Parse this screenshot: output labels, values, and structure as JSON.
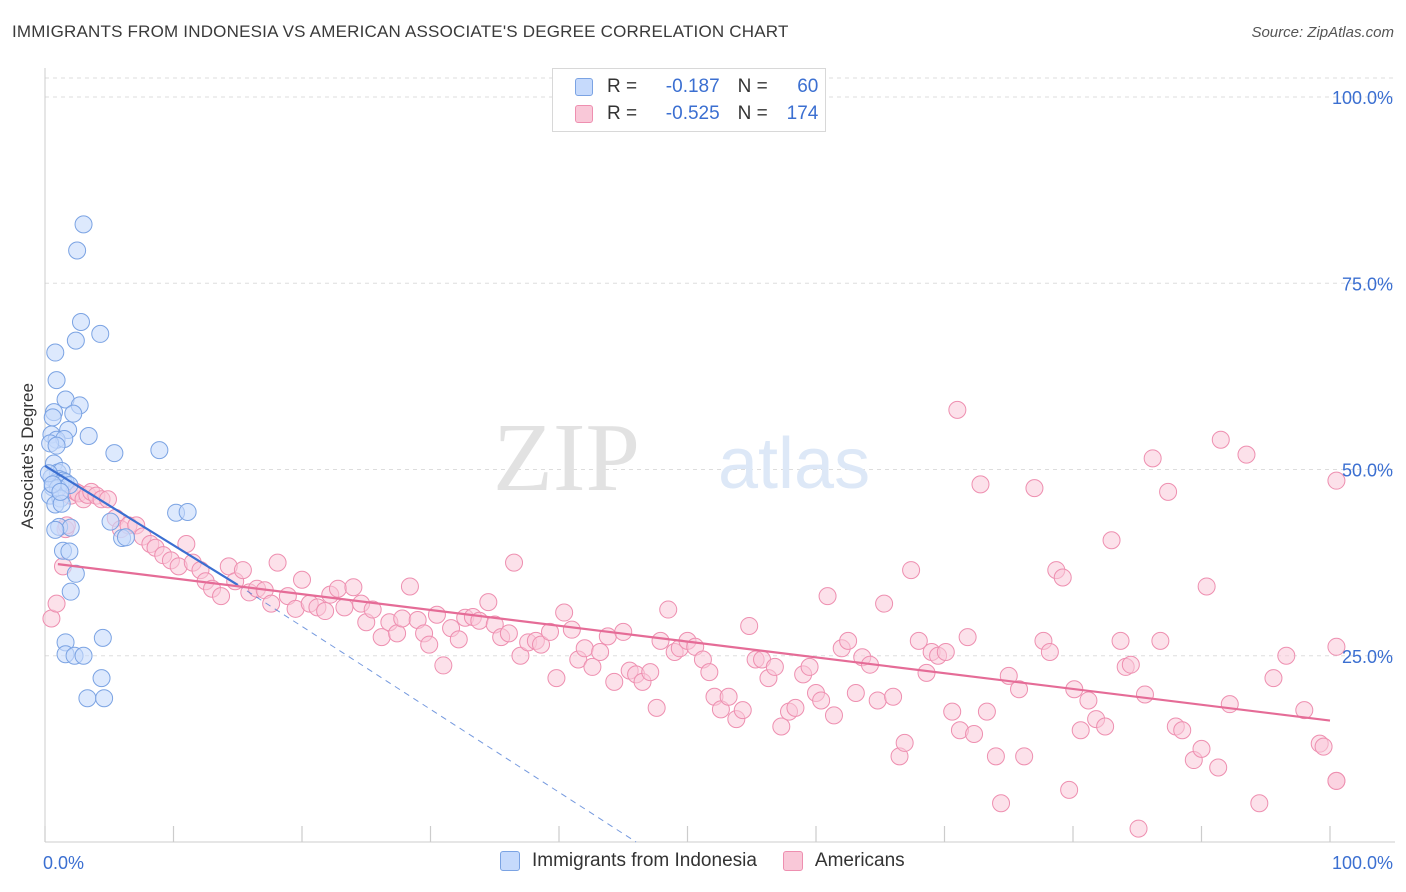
{
  "title": "IMMIGRANTS FROM INDONESIA VS AMERICAN ASSOCIATE'S DEGREE CORRELATION CHART",
  "source": "Source: ZipAtlas.com",
  "watermark": {
    "zip": "ZIP",
    "atlas": "atlas"
  },
  "legend_stats": [
    {
      "r_label": "R =",
      "r_value": "-0.187",
      "n_label": "N =",
      "n_value": "60"
    },
    {
      "r_label": "R =",
      "r_value": "-0.525",
      "n_label": "N =",
      "n_value": "174"
    }
  ],
  "colors": {
    "blue_fill": "#c6dafc",
    "blue_stroke": "#7ba3e3",
    "blue_line": "#3b6fd1",
    "pink_fill": "#f9c8d8",
    "pink_stroke": "#ee8fb0",
    "pink_line": "#e56c97",
    "axis_text": "#3b6fd1",
    "grid": "#dddddd"
  },
  "chart_data": {
    "type": "scatter",
    "title": "IMMIGRANTS FROM INDONESIA VS AMERICAN ASSOCIATE'S DEGREE CORRELATION CHART",
    "xlabel": "",
    "ylabel": "Associate's Degree",
    "xlim": [
      0,
      100
    ],
    "ylim": [
      0,
      100
    ],
    "x_tick_labels": [
      "0.0%",
      "100.0%"
    ],
    "y_ticks": [
      25,
      50,
      75,
      100
    ],
    "y_tick_labels": [
      "25.0%",
      "50.0%",
      "75.0%",
      "100.0%"
    ],
    "grid": true,
    "legend_position": "bottom",
    "series": [
      {
        "name": "Immigrants from Indonesia",
        "color": "#7ba3e3",
        "trend": {
          "x": [
            0,
            15
          ],
          "y": [
            50.5,
            34.5
          ],
          "extended_to": [
            46,
            0
          ]
        },
        "points": [
          [
            3.0,
            82.9
          ],
          [
            2.5,
            79.4
          ],
          [
            2.8,
            69.8
          ],
          [
            4.3,
            68.2
          ],
          [
            2.4,
            67.3
          ],
          [
            0.8,
            65.7
          ],
          [
            0.9,
            62.0
          ],
          [
            1.6,
            59.4
          ],
          [
            2.7,
            58.6
          ],
          [
            0.7,
            57.7
          ],
          [
            0.6,
            57.0
          ],
          [
            2.2,
            57.5
          ],
          [
            3.4,
            54.5
          ],
          [
            1.8,
            55.3
          ],
          [
            0.5,
            54.7
          ],
          [
            0.9,
            54.0
          ],
          [
            1.5,
            54.1
          ],
          [
            0.4,
            53.5
          ],
          [
            0.9,
            53.2
          ],
          [
            5.4,
            52.2
          ],
          [
            8.9,
            52.6
          ],
          [
            0.7,
            50.8
          ],
          [
            1.0,
            49.6
          ],
          [
            1.3,
            49.8
          ],
          [
            0.5,
            48.9
          ],
          [
            1.1,
            48.7
          ],
          [
            1.4,
            48.5
          ],
          [
            0.9,
            48.2
          ],
          [
            1.2,
            48.1
          ],
          [
            1.6,
            48.3
          ],
          [
            0.6,
            47.6
          ],
          [
            1.0,
            47.5
          ],
          [
            1.9,
            47.9
          ],
          [
            0.4,
            46.5
          ],
          [
            1.2,
            46.1
          ],
          [
            0.8,
            45.3
          ],
          [
            1.3,
            45.4
          ],
          [
            10.2,
            44.2
          ],
          [
            11.1,
            44.3
          ],
          [
            5.1,
            43.0
          ],
          [
            1.1,
            42.3
          ],
          [
            2.0,
            42.2
          ],
          [
            0.8,
            41.9
          ],
          [
            6.0,
            40.8
          ],
          [
            6.3,
            40.9
          ],
          [
            1.4,
            39.1
          ],
          [
            1.9,
            39.0
          ],
          [
            2.4,
            36.0
          ],
          [
            2.0,
            33.6
          ],
          [
            1.6,
            26.8
          ],
          [
            4.5,
            27.4
          ],
          [
            1.6,
            25.2
          ],
          [
            2.3,
            25.0
          ],
          [
            3.0,
            25.0
          ],
          [
            4.4,
            22.0
          ],
          [
            3.3,
            19.3
          ],
          [
            4.6,
            19.3
          ],
          [
            0.3,
            49.5
          ],
          [
            0.6,
            48.0
          ],
          [
            1.2,
            47.0
          ]
        ]
      },
      {
        "name": "Americans",
        "color": "#ee8fb0",
        "trend": {
          "x": [
            1,
            100
          ],
          "y": [
            37.3,
            16.3
          ]
        },
        "points": [
          [
            0.5,
            30.0
          ],
          [
            0.9,
            32.0
          ],
          [
            1.4,
            37.0
          ],
          [
            1.6,
            42.0
          ],
          [
            1.7,
            42.5
          ],
          [
            2.0,
            46.5
          ],
          [
            2.4,
            47.0
          ],
          [
            2.6,
            46.8
          ],
          [
            3.0,
            46.0
          ],
          [
            3.3,
            46.6
          ],
          [
            3.6,
            47.0
          ],
          [
            4.0,
            46.5
          ],
          [
            4.4,
            46.0
          ],
          [
            4.9,
            46.0
          ],
          [
            5.5,
            43.5
          ],
          [
            5.9,
            42.0
          ],
          [
            6.5,
            42.5
          ],
          [
            7.1,
            42.5
          ],
          [
            7.6,
            41.0
          ],
          [
            8.2,
            40.0
          ],
          [
            8.6,
            39.5
          ],
          [
            9.2,
            38.5
          ],
          [
            9.8,
            37.8
          ],
          [
            10.4,
            37.0
          ],
          [
            11.0,
            40.0
          ],
          [
            11.5,
            37.5
          ],
          [
            12.1,
            36.5
          ],
          [
            12.5,
            35.0
          ],
          [
            13.0,
            34.0
          ],
          [
            13.7,
            33.0
          ],
          [
            14.3,
            37.0
          ],
          [
            14.8,
            35.0
          ],
          [
            15.4,
            36.5
          ],
          [
            15.9,
            33.5
          ],
          [
            16.5,
            34.0
          ],
          [
            17.1,
            33.8
          ],
          [
            17.6,
            32.0
          ],
          [
            18.1,
            37.5
          ],
          [
            18.9,
            33.0
          ],
          [
            19.5,
            31.3
          ],
          [
            20.0,
            35.2
          ],
          [
            20.6,
            32.0
          ],
          [
            21.2,
            31.5
          ],
          [
            21.8,
            31.0
          ],
          [
            22.2,
            33.2
          ],
          [
            22.8,
            34.0
          ],
          [
            23.3,
            31.5
          ],
          [
            24.0,
            34.2
          ],
          [
            24.6,
            32.0
          ],
          [
            25.0,
            29.5
          ],
          [
            25.5,
            31.2
          ],
          [
            26.2,
            27.5
          ],
          [
            26.8,
            29.5
          ],
          [
            27.4,
            28.0
          ],
          [
            27.8,
            30.0
          ],
          [
            28.4,
            34.3
          ],
          [
            29.0,
            29.8
          ],
          [
            29.5,
            28.0
          ],
          [
            29.9,
            26.5
          ],
          [
            30.5,
            30.5
          ],
          [
            31.0,
            23.7
          ],
          [
            31.6,
            28.7
          ],
          [
            32.2,
            27.2
          ],
          [
            32.7,
            30.1
          ],
          [
            33.3,
            30.2
          ],
          [
            33.8,
            29.7
          ],
          [
            34.5,
            32.2
          ],
          [
            35.0,
            29.2
          ],
          [
            35.5,
            27.5
          ],
          [
            36.1,
            28.0
          ],
          [
            36.5,
            37.5
          ],
          [
            37.0,
            25.0
          ],
          [
            37.6,
            26.8
          ],
          [
            38.2,
            27.0
          ],
          [
            38.6,
            26.5
          ],
          [
            39.3,
            28.2
          ],
          [
            39.8,
            22.0
          ],
          [
            40.4,
            30.8
          ],
          [
            41.0,
            28.5
          ],
          [
            41.5,
            24.5
          ],
          [
            42.0,
            26.0
          ],
          [
            42.6,
            23.5
          ],
          [
            43.2,
            25.5
          ],
          [
            43.8,
            27.6
          ],
          [
            44.3,
            21.5
          ],
          [
            45.0,
            28.2
          ],
          [
            45.5,
            23.0
          ],
          [
            46.0,
            22.5
          ],
          [
            46.5,
            21.5
          ],
          [
            47.1,
            22.8
          ],
          [
            47.6,
            18.0
          ],
          [
            47.9,
            27.0
          ],
          [
            48.5,
            31.2
          ],
          [
            49.0,
            25.5
          ],
          [
            49.4,
            26.0
          ],
          [
            50.0,
            27.0
          ],
          [
            50.6,
            26.2
          ],
          [
            51.2,
            24.5
          ],
          [
            51.7,
            22.8
          ],
          [
            52.1,
            19.5
          ],
          [
            52.6,
            17.8
          ],
          [
            53.2,
            19.5
          ],
          [
            53.8,
            16.5
          ],
          [
            54.3,
            17.7
          ],
          [
            54.8,
            29.0
          ],
          [
            55.3,
            24.5
          ],
          [
            55.8,
            24.5
          ],
          [
            56.3,
            22.0
          ],
          [
            56.8,
            23.5
          ],
          [
            57.3,
            15.5
          ],
          [
            57.9,
            17.5
          ],
          [
            58.4,
            18.0
          ],
          [
            59.0,
            22.5
          ],
          [
            59.5,
            23.5
          ],
          [
            60.0,
            20.0
          ],
          [
            60.4,
            19.0
          ],
          [
            60.9,
            33.0
          ],
          [
            61.4,
            17.0
          ],
          [
            62.0,
            26.0
          ],
          [
            62.5,
            27.0
          ],
          [
            63.1,
            20.0
          ],
          [
            63.6,
            24.8
          ],
          [
            64.2,
            23.8
          ],
          [
            64.8,
            19.0
          ],
          [
            65.3,
            32.0
          ],
          [
            66.0,
            19.5
          ],
          [
            66.5,
            11.5
          ],
          [
            66.9,
            13.3
          ],
          [
            67.4,
            36.5
          ],
          [
            68.0,
            27.0
          ],
          [
            68.6,
            22.7
          ],
          [
            69.0,
            25.5
          ],
          [
            69.5,
            25.0
          ],
          [
            70.1,
            25.5
          ],
          [
            70.6,
            17.5
          ],
          [
            71.2,
            15.0
          ],
          [
            71.8,
            27.5
          ],
          [
            72.3,
            14.5
          ],
          [
            72.8,
            48.0
          ],
          [
            73.3,
            17.5
          ],
          [
            74.0,
            11.5
          ],
          [
            74.4,
            5.2
          ],
          [
            75.0,
            22.3
          ],
          [
            75.8,
            20.5
          ],
          [
            76.2,
            11.5
          ],
          [
            77.0,
            47.5
          ],
          [
            77.7,
            27.0
          ],
          [
            78.2,
            25.5
          ],
          [
            78.7,
            36.5
          ],
          [
            79.2,
            35.5
          ],
          [
            79.7,
            7.0
          ],
          [
            80.1,
            20.5
          ],
          [
            80.6,
            15.0
          ],
          [
            81.2,
            19.0
          ],
          [
            81.8,
            16.5
          ],
          [
            82.5,
            15.5
          ],
          [
            83.0,
            40.5
          ],
          [
            83.7,
            27.0
          ],
          [
            84.1,
            23.5
          ],
          [
            84.5,
            23.8
          ],
          [
            85.1,
            1.8
          ],
          [
            85.6,
            19.8
          ],
          [
            86.2,
            51.5
          ],
          [
            86.8,
            27.0
          ],
          [
            87.4,
            47.0
          ],
          [
            88.0,
            15.5
          ],
          [
            88.5,
            15.0
          ],
          [
            89.4,
            11.0
          ],
          [
            90.0,
            12.5
          ],
          [
            90.4,
            34.3
          ],
          [
            91.3,
            10.0
          ],
          [
            92.2,
            18.5
          ],
          [
            93.5,
            52.0
          ],
          [
            94.5,
            5.2
          ],
          [
            95.6,
            22.0
          ],
          [
            96.6,
            25.0
          ],
          [
            98.0,
            17.7
          ],
          [
            99.2,
            13.2
          ],
          [
            99.5,
            12.8
          ],
          [
            100.8,
            26.2
          ],
          [
            101.5,
            8.2
          ],
          [
            104.0,
            8.2
          ],
          [
            104.8,
            48.5
          ],
          [
            71.0,
            58.0
          ],
          [
            91.5,
            54.0
          ]
        ]
      }
    ]
  }
}
